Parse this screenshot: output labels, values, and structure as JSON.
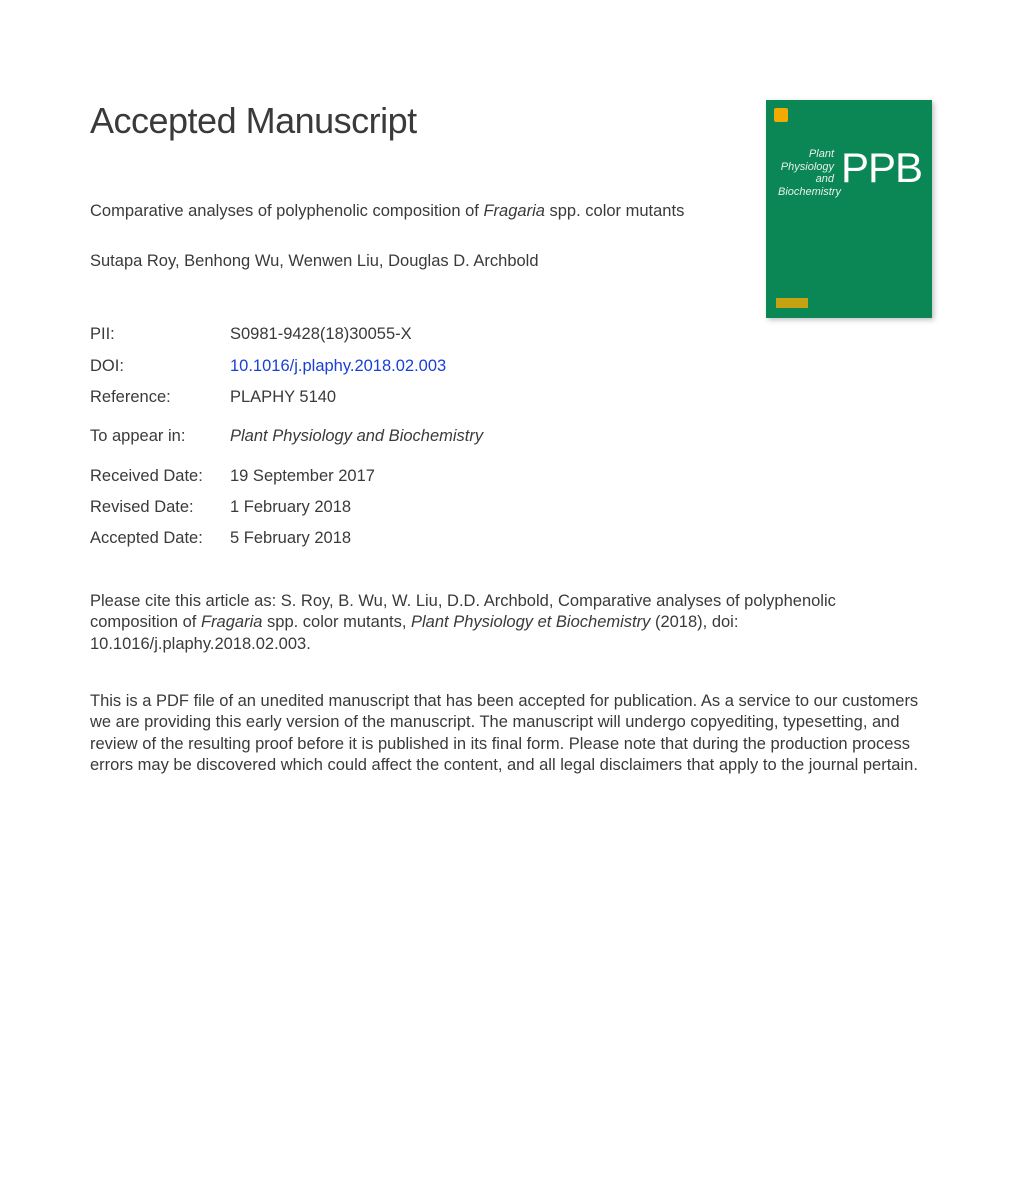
{
  "heading": "Accepted Manuscript",
  "article": {
    "title_prefix": "Comparative analyses of polyphenolic composition of ",
    "title_italic": "Fragaria",
    "title_suffix": " spp. color mutants",
    "authors": "Sutapa Roy, Benhong Wu, Wenwen Liu, Douglas D. Archbold"
  },
  "meta": {
    "pii_label": "PII:",
    "pii_value": "S0981-9428(18)30055-X",
    "doi_label": "DOI:",
    "doi_value": "10.1016/j.plaphy.2018.02.003",
    "reference_label": "Reference:",
    "reference_value": "PLAPHY 5140",
    "appear_label": "To appear in:",
    "appear_value": "Plant Physiology and Biochemistry",
    "received_label": "Received Date:",
    "received_value": "19 September 2017",
    "revised_label": "Revised Date:",
    "revised_value": "1 February 2018",
    "accepted_label": "Accepted Date:",
    "accepted_value": "5 February 2018"
  },
  "citation": {
    "pre": "Please cite this article as: S. Roy, B. Wu, W. Liu, D.D. Archbold, Comparative analyses of polyphenolic composition of ",
    "ital1": "Fragaria",
    "mid": " spp. color mutants, ",
    "ital2": "Plant Physiology et Biochemistry",
    "post": " (2018), doi: 10.1016/j.plaphy.2018.02.003."
  },
  "disclaimer": "This is a PDF file of an unedited manuscript that has been accepted for publication. As a service to our customers we are providing this early version of the manuscript. The manuscript will undergo copyediting, typesetting, and review of the resulting proof before it is published in its final form. Please note that during the production process errors may be discovered which could affect the content, and all legal disclaimers that apply to the journal pertain.",
  "cover": {
    "journal_lines": "Plant\nPhysiology\nand\nBiochemistry",
    "acronym": "PPB",
    "bg_color": "#0a8754",
    "text_color": "#ffffff"
  },
  "colors": {
    "text": "#3a3a3a",
    "link": "#1a3fd6",
    "background": "#ffffff",
    "cover_accent": "#f2a900"
  },
  "typography": {
    "heading_fontsize": 36,
    "body_fontsize": 16.5,
    "font_family": "Arial"
  }
}
